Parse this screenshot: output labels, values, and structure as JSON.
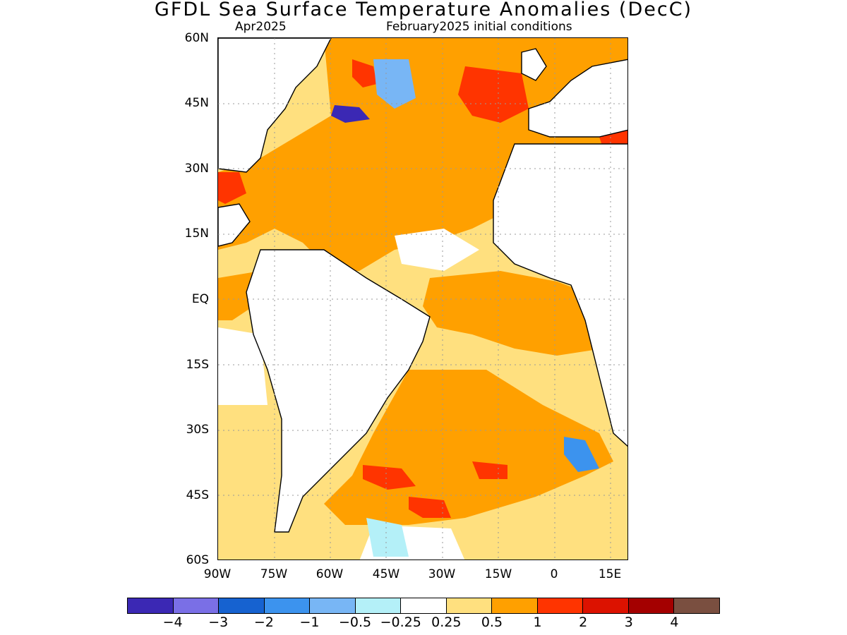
{
  "title": "GFDL Sea Surface Temperature Anomalies (DecC)",
  "subtitle_left": "Apr2025",
  "subtitle_right": "February2025 initial conditions",
  "lat_labels": [
    "60N",
    "45N",
    "30N",
    "15N",
    "EQ",
    "15S",
    "30S",
    "45S",
    "60S"
  ],
  "lon_labels": [
    "90W",
    "75W",
    "60W",
    "45W",
    "30W",
    "15W",
    "0",
    "15E"
  ],
  "colorbar": {
    "colors": [
      "#3b28b4",
      "#7a6fe6",
      "#1662d0",
      "#3c93ee",
      "#78b6f5",
      "#b4f0f8",
      "#ffffff",
      "#ffe07f",
      "#ffa000",
      "#ff3400",
      "#dc1200",
      "#a40000",
      "#7a4f40"
    ],
    "labels": [
      "−4",
      "−3",
      "−2",
      "−1",
      "−0.5",
      "−0.25",
      "0.25",
      "0.5",
      "1",
      "2",
      "3",
      "4"
    ]
  },
  "colors": {
    "land": "#ffffff",
    "coast": "#000000",
    "grid": "#9a9a9a"
  }
}
